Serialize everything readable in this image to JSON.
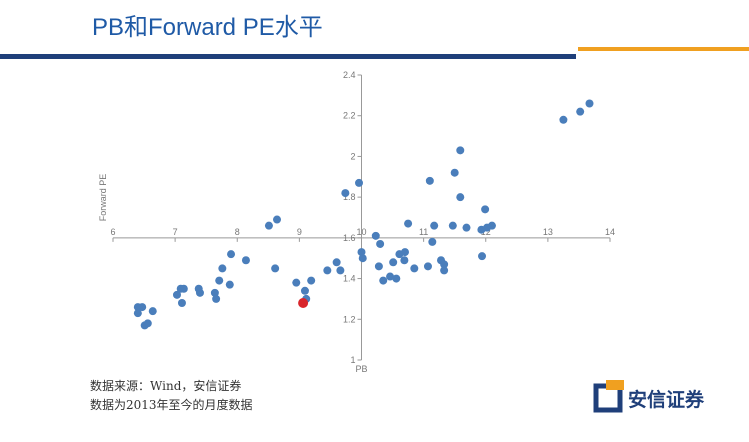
{
  "chart_data": {
    "type": "scatter",
    "title": "PB和Forward PE水平",
    "x_label": "PB",
    "y_label": "Forward PE",
    "xlim": [
      6,
      14
    ],
    "xticks": [
      6,
      7,
      8,
      9,
      10,
      11,
      12,
      13,
      14
    ],
    "ylim": [
      1,
      2.4
    ],
    "yticks": [
      1,
      1.2,
      1.4,
      1.6,
      1.8,
      2,
      2.2,
      2.4
    ],
    "x_axis_crosses_at": 1.6,
    "y_axis_crosses_at": 10,
    "x": [
      6.4,
      6.47,
      6.4,
      6.51,
      6.56,
      6.64,
      7.03,
      7.09,
      7.14,
      7.11,
      7.38,
      7.4,
      7.64,
      7.66,
      7.71,
      7.76,
      7.88,
      7.9,
      8.14,
      8.51,
      8.64,
      8.61,
      8.95,
      9.06,
      9.09,
      9.11,
      9.19,
      9.45,
      9.6,
      9.66,
      9.74,
      9.96,
      10.0,
      10.02,
      10.23,
      10.3,
      10.28,
      10.35,
      10.46,
      10.56,
      10.51,
      10.61,
      10.69,
      10.7,
      10.75,
      10.85,
      11.07,
      11.1,
      11.14,
      11.17,
      11.28,
      11.33,
      11.33,
      11.47,
      11.5,
      11.59,
      11.59,
      11.69,
      11.93,
      11.94,
      11.99,
      12.02,
      12.1,
      13.25,
      13.52,
      13.67
    ],
    "values": [
      1.26,
      1.26,
      1.23,
      1.17,
      1.18,
      1.24,
      1.32,
      1.35,
      1.35,
      1.28,
      1.35,
      1.33,
      1.33,
      1.3,
      1.39,
      1.45,
      1.37,
      1.52,
      1.49,
      1.66,
      1.69,
      1.45,
      1.38,
      1.28,
      1.34,
      1.3,
      1.39,
      1.44,
      1.48,
      1.44,
      1.82,
      1.87,
      1.53,
      1.5,
      1.61,
      1.57,
      1.46,
      1.39,
      1.41,
      1.4,
      1.48,
      1.52,
      1.49,
      1.53,
      1.67,
      1.45,
      1.46,
      1.88,
      1.58,
      1.66,
      1.49,
      1.44,
      1.47,
      1.66,
      1.92,
      2.03,
      1.8,
      1.65,
      1.64,
      1.51,
      1.74,
      1.65,
      1.66,
      2.18,
      2.22,
      2.26
    ],
    "color": "#4a7ebb",
    "highlight_color": "#d9262c",
    "highlight_index": 23
  },
  "notes": [
    "数据来源：Wind，安信证券",
    "数据为2013年至今的月度数据"
  ],
  "logo": "安信证券"
}
